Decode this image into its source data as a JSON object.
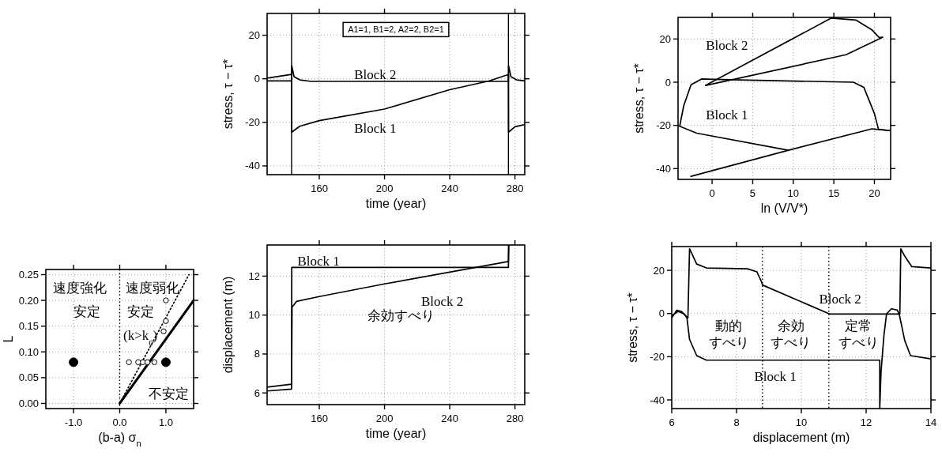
{
  "chart_data": [
    {
      "type": "line",
      "xlabel": "time (year)",
      "ylabel": "stress, τ − τ*",
      "xlim": [
        128,
        286
      ],
      "ylim": [
        -44,
        30
      ],
      "xticks": [
        160,
        200,
        240,
        280
      ],
      "yticks": [
        -40,
        -20,
        0,
        20
      ],
      "grid": true,
      "ref_lines": [
        {
          "axis": "x",
          "value": 143,
          "color": "#000000",
          "line_style": "solid"
        },
        {
          "axis": "x",
          "value": 276,
          "color": "#000000",
          "line_style": "solid"
        }
      ],
      "annotations": [
        "A1=1, B1=2, A2=2, B2=1",
        "Block 2",
        "Block 1"
      ],
      "series": [
        {
          "color": "#000000",
          "x": [
            128,
            143,
            143.1,
            148,
            160,
            200,
            240,
            264,
            276,
            276.1,
            280,
            286
          ],
          "values": [
            0.3,
            2,
            -24.5,
            -21.8,
            -19.2,
            -13.9,
            -5,
            -1,
            2,
            -24.5,
            -22,
            -21
          ]
        },
        {
          "color": "#000000",
          "x": [
            128,
            143,
            143.1,
            144.5,
            148,
            155,
            276,
            276.1,
            277.5,
            281,
            286
          ],
          "values": [
            -1,
            -1,
            6,
            1,
            -0.5,
            -1.2,
            -1.2,
            6,
            1,
            -0.5,
            -1
          ]
        }
      ]
    },
    {
      "type": "line",
      "xlabel": "ln (V/V*)",
      "ylabel": "stress, τ − τ*",
      "xlim": [
        -4.2,
        22
      ],
      "ylim": [
        -45,
        30
      ],
      "xticks": [
        0,
        5,
        10,
        15,
        20
      ],
      "yticks": [
        -40,
        -20,
        0,
        20
      ],
      "grid": true,
      "annotations": [
        "Block 2",
        "Block 1"
      ],
      "series": [
        {
          "color": "#000000",
          "x": [
            -0.8,
            14.7,
            17.7,
            19.7,
            20.6,
            21
          ],
          "values": [
            -1.5,
            29.7,
            28.8,
            24.2,
            20.6,
            20.8
          ]
        },
        {
          "color": "#000000",
          "x": [
            -0.8,
            16.5,
            21
          ],
          "values": [
            -1.5,
            12.7,
            20.8
          ]
        },
        {
          "color": "#000000",
          "x": [
            -2.6,
            9.4,
            19.7,
            21.9
          ],
          "values": [
            -43.6,
            -31.5,
            -21.6,
            -22.4
          ]
        },
        {
          "color": "#000000",
          "x": [
            -4,
            -3.5,
            -2.6,
            -1.3,
            1.1,
            17.4,
            18.7,
            20,
            20.5,
            21.9
          ],
          "values": [
            -20.4,
            -10.9,
            -1.2,
            1.5,
            1.2,
            0,
            -2.4,
            -14.5,
            -21.8,
            -22.4
          ]
        },
        {
          "color": "#000000",
          "x": [
            -4,
            -1.9,
            9.4
          ],
          "values": [
            -20.4,
            -23.6,
            -31.5
          ]
        }
      ]
    },
    {
      "type": "scatter",
      "xlabel": "(b-a) σ$_{n}$",
      "ylabel": "L",
      "xlim": [
        -1.6,
        1.6
      ],
      "ylim": [
        -0.01,
        0.26
      ],
      "xticks": [
        {
          "value": -1,
          "label": "-1.0"
        },
        {
          "value": 0,
          "label": "0.0"
        },
        {
          "value": 1,
          "label": "1.0"
        }
      ],
      "yticks": [
        {
          "value": 0,
          "label": "0.00"
        },
        {
          "value": 0.05,
          "label": "0.05"
        },
        {
          "value": 0.1,
          "label": "0.10"
        },
        {
          "value": 0.15,
          "label": "0.15"
        },
        {
          "value": 0.2,
          "label": "0.20"
        },
        {
          "value": 0.25,
          "label": "0.25"
        }
      ],
      "grid": true,
      "ref_lines": [
        {
          "axis": "x",
          "value": 0,
          "color": "#000000",
          "line_style": "dotted"
        }
      ],
      "annotations": [
        "速度強化",
        "安定",
        "速度弱化",
        "安定",
        "(k>k$_{c}$)",
        "不安定"
      ],
      "series": [
        {
          "type": "line",
          "color": "#000000",
          "line_style": "solid",
          "x": [
            0,
            1.6
          ],
          "values": [
            0,
            0.2
          ]
        },
        {
          "type": "line",
          "color": "#000000",
          "line_style": "dotted",
          "x": [
            0,
            1.5
          ],
          "values": [
            0,
            0.25
          ]
        },
        {
          "type": "scatter",
          "color": "#000000",
          "marker": "circle",
          "x": [
            -1,
            1
          ],
          "values": [
            0.08,
            0.08
          ]
        },
        {
          "type": "scatter",
          "color": "#ffffff",
          "marker": "circle",
          "x": [
            0.2,
            0.4,
            0.5,
            0.6,
            0.75,
            0.95,
            1.0,
            1.0
          ],
          "values": [
            0.08,
            0.08,
            0.08,
            0.08,
            0.08,
            0.14,
            0.16,
            0.2
          ]
        }
      ]
    },
    {
      "type": "line",
      "xlabel": "time (year)",
      "ylabel": "displacement (m)",
      "xlim": [
        128,
        286
      ],
      "ylim": [
        5.4,
        13.6
      ],
      "xticks": [
        160,
        200,
        240,
        280
      ],
      "yticks": [
        6,
        8,
        10,
        12
      ],
      "grid": true,
      "annotations": [
        "Block 1",
        "Block 2",
        "余効すべり"
      ],
      "series": [
        {
          "color": "#000000",
          "x": [
            128,
            143,
            143.1,
            276,
            276.1
          ],
          "values": [
            6.3,
            6.45,
            12.45,
            12.45,
            13.6
          ]
        },
        {
          "color": "#000000",
          "x": [
            128,
            143,
            143.3,
            146,
            160,
            200,
            262,
            276,
            276.2
          ],
          "values": [
            6.1,
            6.2,
            10.4,
            10.7,
            10.95,
            11.6,
            12.54,
            12.75,
            13.6
          ]
        }
      ]
    },
    {
      "type": "line",
      "xlabel": "displacement (m)",
      "ylabel": "stress, τ − τ*",
      "xlim": [
        6,
        14
      ],
      "ylim": [
        -44,
        31
      ],
      "xticks": [
        6,
        8,
        10,
        12,
        14
      ],
      "yticks": [
        -40,
        -20,
        0,
        20
      ],
      "grid": true,
      "ref_lines": [
        {
          "axis": "x",
          "value": 8.8,
          "color": "#000000",
          "line_style": "dotted"
        },
        {
          "axis": "x",
          "value": 10.85,
          "color": "#000000",
          "line_style": "dotted"
        }
      ],
      "annotations": [
        "Block 2",
        "Block 1",
        "動的すべり",
        "余効すべり",
        "定常すべり"
      ],
      "series": [
        {
          "color": "#000000",
          "x": [
            6.0,
            6.15,
            6.3,
            6.4,
            6.47,
            6.55,
            6.77,
            7.07,
            12.42,
            12.42,
            12.46,
            12.55,
            12.63,
            12.78,
            12.96,
            13.02,
            13.19,
            13.37,
            14
          ],
          "values": [
            -2,
            1.5,
            1,
            -0.5,
            -2,
            -12,
            -19.5,
            -21.6,
            -21.6,
            -44,
            -27,
            -10,
            -0.2,
            2.2,
            1.6,
            -0.2,
            -12.4,
            -19.5,
            -21
          ]
        },
        {
          "color": "#000000",
          "x": [
            6.0,
            6.2,
            6.35,
            6.5,
            6.55,
            6.77,
            7.07,
            8.34,
            8.63,
            8.78,
            8.8,
            10.87,
            13.04,
            13.07,
            13.19,
            13.41,
            14
          ],
          "values": [
            -1,
            1,
            0,
            -2,
            30,
            22.9,
            21.1,
            20.7,
            19.3,
            14.4,
            13.2,
            -0.2,
            -0.2,
            30,
            26.6,
            21.7,
            21.1
          ]
        }
      ]
    }
  ]
}
